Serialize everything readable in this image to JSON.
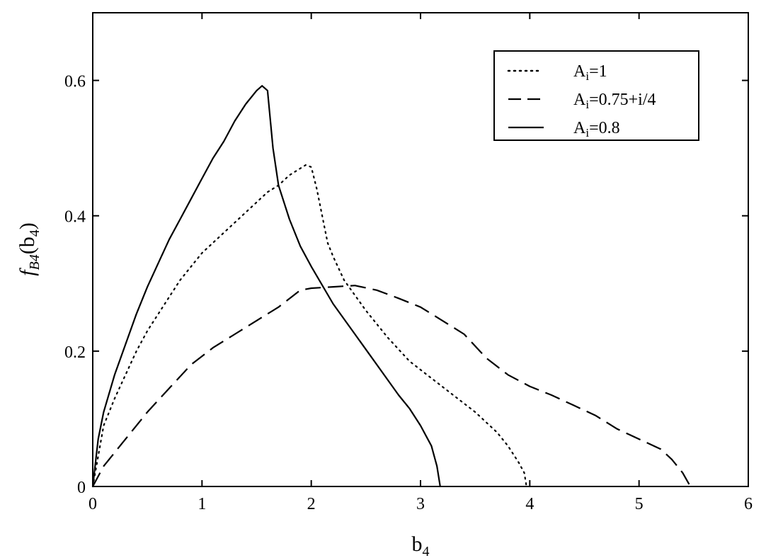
{
  "chart_data": {
    "type": "line",
    "xlabel": {
      "base": "b",
      "sub": "4"
    },
    "ylabel": {
      "f": "f",
      "fsub": "B4",
      "arg": "b",
      "argsub": "4"
    },
    "xlim": [
      0,
      6
    ],
    "ylim": [
      0,
      0.7
    ],
    "xticks": [
      0,
      1,
      2,
      3,
      4,
      5,
      6
    ],
    "xtick_labels": [
      "0",
      "1",
      "2",
      "3",
      "4",
      "5",
      "6"
    ],
    "yticks": [
      0,
      0.2,
      0.4,
      0.6
    ],
    "ytick_labels": [
      "0",
      "0.2",
      "0.4",
      "0.6"
    ],
    "grid": false,
    "legend_position": "top-right",
    "series": [
      {
        "name_base": "A",
        "name_sub": "i",
        "name_rest": "=1",
        "style": "dotted",
        "x": [
          0,
          0.05,
          0.1,
          0.2,
          0.3,
          0.4,
          0.5,
          0.6,
          0.7,
          0.8,
          0.9,
          1.0,
          1.1,
          1.2,
          1.3,
          1.4,
          1.5,
          1.6,
          1.7,
          1.8,
          1.9,
          1.95,
          2.0,
          2.05,
          2.1,
          2.15,
          2.2,
          2.3,
          2.5,
          2.7,
          2.9,
          3.1,
          3.3,
          3.5,
          3.7,
          3.8,
          3.9,
          3.95,
          3.97
        ],
        "y": [
          0,
          0.045,
          0.09,
          0.13,
          0.165,
          0.2,
          0.23,
          0.255,
          0.28,
          0.305,
          0.325,
          0.345,
          0.36,
          0.375,
          0.39,
          0.405,
          0.42,
          0.435,
          0.445,
          0.46,
          0.47,
          0.475,
          0.472,
          0.44,
          0.4,
          0.36,
          0.34,
          0.305,
          0.26,
          0.22,
          0.185,
          0.16,
          0.135,
          0.11,
          0.08,
          0.06,
          0.035,
          0.02,
          0.0
        ]
      },
      {
        "name_base": "A",
        "name_sub": "i",
        "name_rest": "=0.75+i/4",
        "style": "dashed",
        "x": [
          0,
          0.1,
          0.3,
          0.5,
          0.7,
          0.9,
          1.1,
          1.3,
          1.5,
          1.7,
          1.9,
          2.0,
          2.2,
          2.4,
          2.6,
          2.8,
          3.0,
          3.2,
          3.4,
          3.6,
          3.8,
          4.0,
          4.2,
          4.4,
          4.6,
          4.8,
          5.0,
          5.2,
          5.3,
          5.4,
          5.47
        ],
        "y": [
          0,
          0.03,
          0.07,
          0.11,
          0.145,
          0.18,
          0.205,
          0.225,
          0.245,
          0.265,
          0.29,
          0.293,
          0.295,
          0.297,
          0.29,
          0.278,
          0.265,
          0.245,
          0.225,
          0.19,
          0.165,
          0.148,
          0.135,
          0.12,
          0.105,
          0.085,
          0.07,
          0.055,
          0.04,
          0.02,
          0.0
        ]
      },
      {
        "name_base": "A",
        "name_sub": "i",
        "name_rest": "=0.8",
        "style": "solid",
        "x": [
          0,
          0.05,
          0.1,
          0.2,
          0.3,
          0.4,
          0.5,
          0.6,
          0.7,
          0.8,
          0.9,
          1.0,
          1.1,
          1.2,
          1.3,
          1.4,
          1.5,
          1.55,
          1.6,
          1.65,
          1.7,
          1.8,
          1.9,
          2.0,
          2.2,
          2.4,
          2.6,
          2.8,
          2.9,
          3.0,
          3.1,
          3.15,
          3.18
        ],
        "y": [
          0,
          0.07,
          0.11,
          0.165,
          0.21,
          0.255,
          0.295,
          0.33,
          0.365,
          0.395,
          0.425,
          0.455,
          0.485,
          0.51,
          0.54,
          0.565,
          0.585,
          0.592,
          0.585,
          0.5,
          0.445,
          0.395,
          0.355,
          0.325,
          0.27,
          0.225,
          0.18,
          0.135,
          0.115,
          0.09,
          0.06,
          0.03,
          0.0
        ]
      }
    ]
  }
}
